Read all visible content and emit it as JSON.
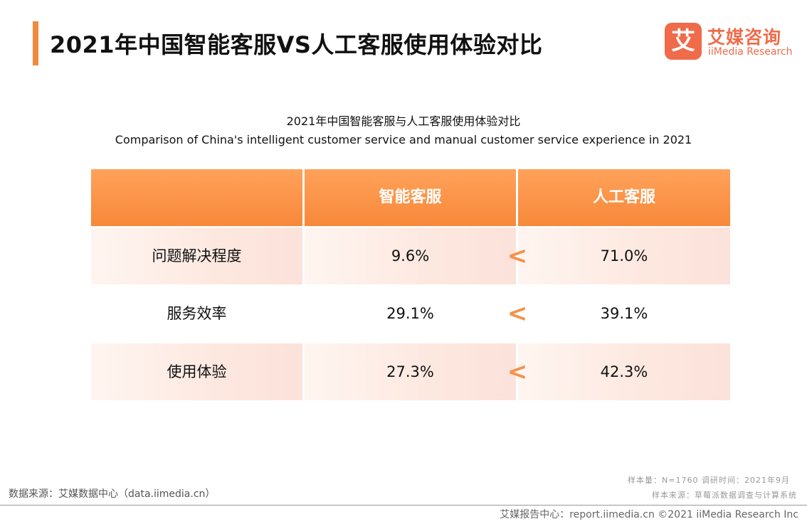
{
  "header": {
    "title": "2021年中国智能客服VS人工客服使用体验对比",
    "logo_mark": "艾",
    "logo_cn": "艾媒咨询",
    "logo_en": "iiMedia Research"
  },
  "chart_data": {
    "type": "table",
    "title": "2021年中国智能客服与人工客服使用体验对比",
    "subtitle": "Comparison of China's intelligent customer service and manual customer service experience in 2021",
    "columns": [
      "",
      "智能客服",
      "人工客服"
    ],
    "rows": [
      {
        "label": "问题解决程度",
        "intelligent": "9.6%",
        "comparison": "<",
        "manual": "71.0%"
      },
      {
        "label": "服务效率",
        "intelligent": "29.1%",
        "comparison": "<",
        "manual": "39.1%"
      },
      {
        "label": "使用体验",
        "intelligent": "27.3%",
        "comparison": "<",
        "manual": "42.3%"
      }
    ]
  },
  "footer": {
    "source": "数据来源：艾媒数据中心（data.iimedia.cn）",
    "sample_line1": "样本量：N=1760    调研时间：2021年9月",
    "sample_line2": "样本来源：草莓派数据调查与计算系统",
    "copyright": "艾媒报告中心：report.iimedia.cn  ©2021  iiMedia Research  Inc"
  },
  "colors": {
    "accent": "#f08a3c",
    "brand": "#ef6b4a",
    "header_fill": "#f7883a",
    "row_tint": "#fde8e0"
  }
}
